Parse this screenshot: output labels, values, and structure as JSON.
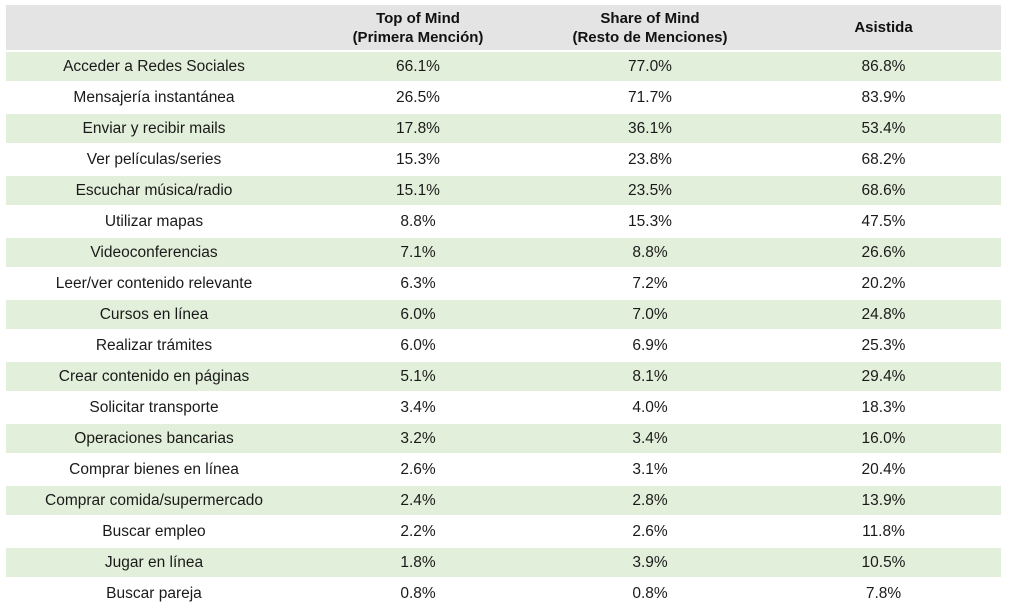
{
  "table": {
    "headers": [
      {
        "lines": [
          ""
        ]
      },
      {
        "lines": [
          "Top of Mind",
          "(Primera Mención)"
        ]
      },
      {
        "lines": [
          "Share of Mind",
          "(Resto de Menciones)"
        ]
      },
      {
        "lines": [
          "Asistida"
        ]
      }
    ],
    "rows": [
      {
        "label": "Acceder a Redes Sociales",
        "top_of_mind": "66.1%",
        "share_of_mind": "77.0%",
        "asistida": "86.8%"
      },
      {
        "label": "Mensajería instantánea",
        "top_of_mind": "26.5%",
        "share_of_mind": "71.7%",
        "asistida": "83.9%"
      },
      {
        "label": "Enviar y recibir mails",
        "top_of_mind": "17.8%",
        "share_of_mind": "36.1%",
        "asistida": "53.4%"
      },
      {
        "label": "Ver películas/series",
        "top_of_mind": "15.3%",
        "share_of_mind": "23.8%",
        "asistida": "68.2%"
      },
      {
        "label": "Escuchar música/radio",
        "top_of_mind": "15.1%",
        "share_of_mind": "23.5%",
        "asistida": "68.6%"
      },
      {
        "label": "Utilizar mapas",
        "top_of_mind": "8.8%",
        "share_of_mind": "15.3%",
        "asistida": "47.5%"
      },
      {
        "label": "Videoconferencias",
        "top_of_mind": "7.1%",
        "share_of_mind": "8.8%",
        "asistida": "26.6%"
      },
      {
        "label": "Leer/ver contenido relevante",
        "top_of_mind": "6.3%",
        "share_of_mind": "7.2%",
        "asistida": "20.2%"
      },
      {
        "label": "Cursos en línea",
        "top_of_mind": "6.0%",
        "share_of_mind": "7.0%",
        "asistida": "24.8%"
      },
      {
        "label": "Realizar trámites",
        "top_of_mind": "6.0%",
        "share_of_mind": "6.9%",
        "asistida": "25.3%"
      },
      {
        "label": "Crear contenido en páginas",
        "top_of_mind": "5.1%",
        "share_of_mind": "8.1%",
        "asistida": "29.4%"
      },
      {
        "label": "Solicitar transporte",
        "top_of_mind": "3.4%",
        "share_of_mind": "4.0%",
        "asistida": "18.3%"
      },
      {
        "label": "Operaciones bancarias",
        "top_of_mind": "3.2%",
        "share_of_mind": "3.4%",
        "asistida": "16.0%"
      },
      {
        "label": "Comprar bienes en línea",
        "top_of_mind": "2.6%",
        "share_of_mind": "3.1%",
        "asistida": "20.4%"
      },
      {
        "label": "Comprar comida/supermercado",
        "top_of_mind": "2.4%",
        "share_of_mind": "2.8%",
        "asistida": "13.9%"
      },
      {
        "label": "Buscar empleo",
        "top_of_mind": "2.2%",
        "share_of_mind": "2.6%",
        "asistida": "11.8%"
      },
      {
        "label": "Jugar en línea",
        "top_of_mind": "1.8%",
        "share_of_mind": "3.9%",
        "asistida": "10.5%"
      },
      {
        "label": "Buscar pareja",
        "top_of_mind": "0.8%",
        "share_of_mind": "0.8%",
        "asistida": "7.8%"
      }
    ]
  },
  "colors": {
    "header_bg": "#e4e4e4",
    "band_green": "#e2efda",
    "band_white": "#ffffff"
  }
}
